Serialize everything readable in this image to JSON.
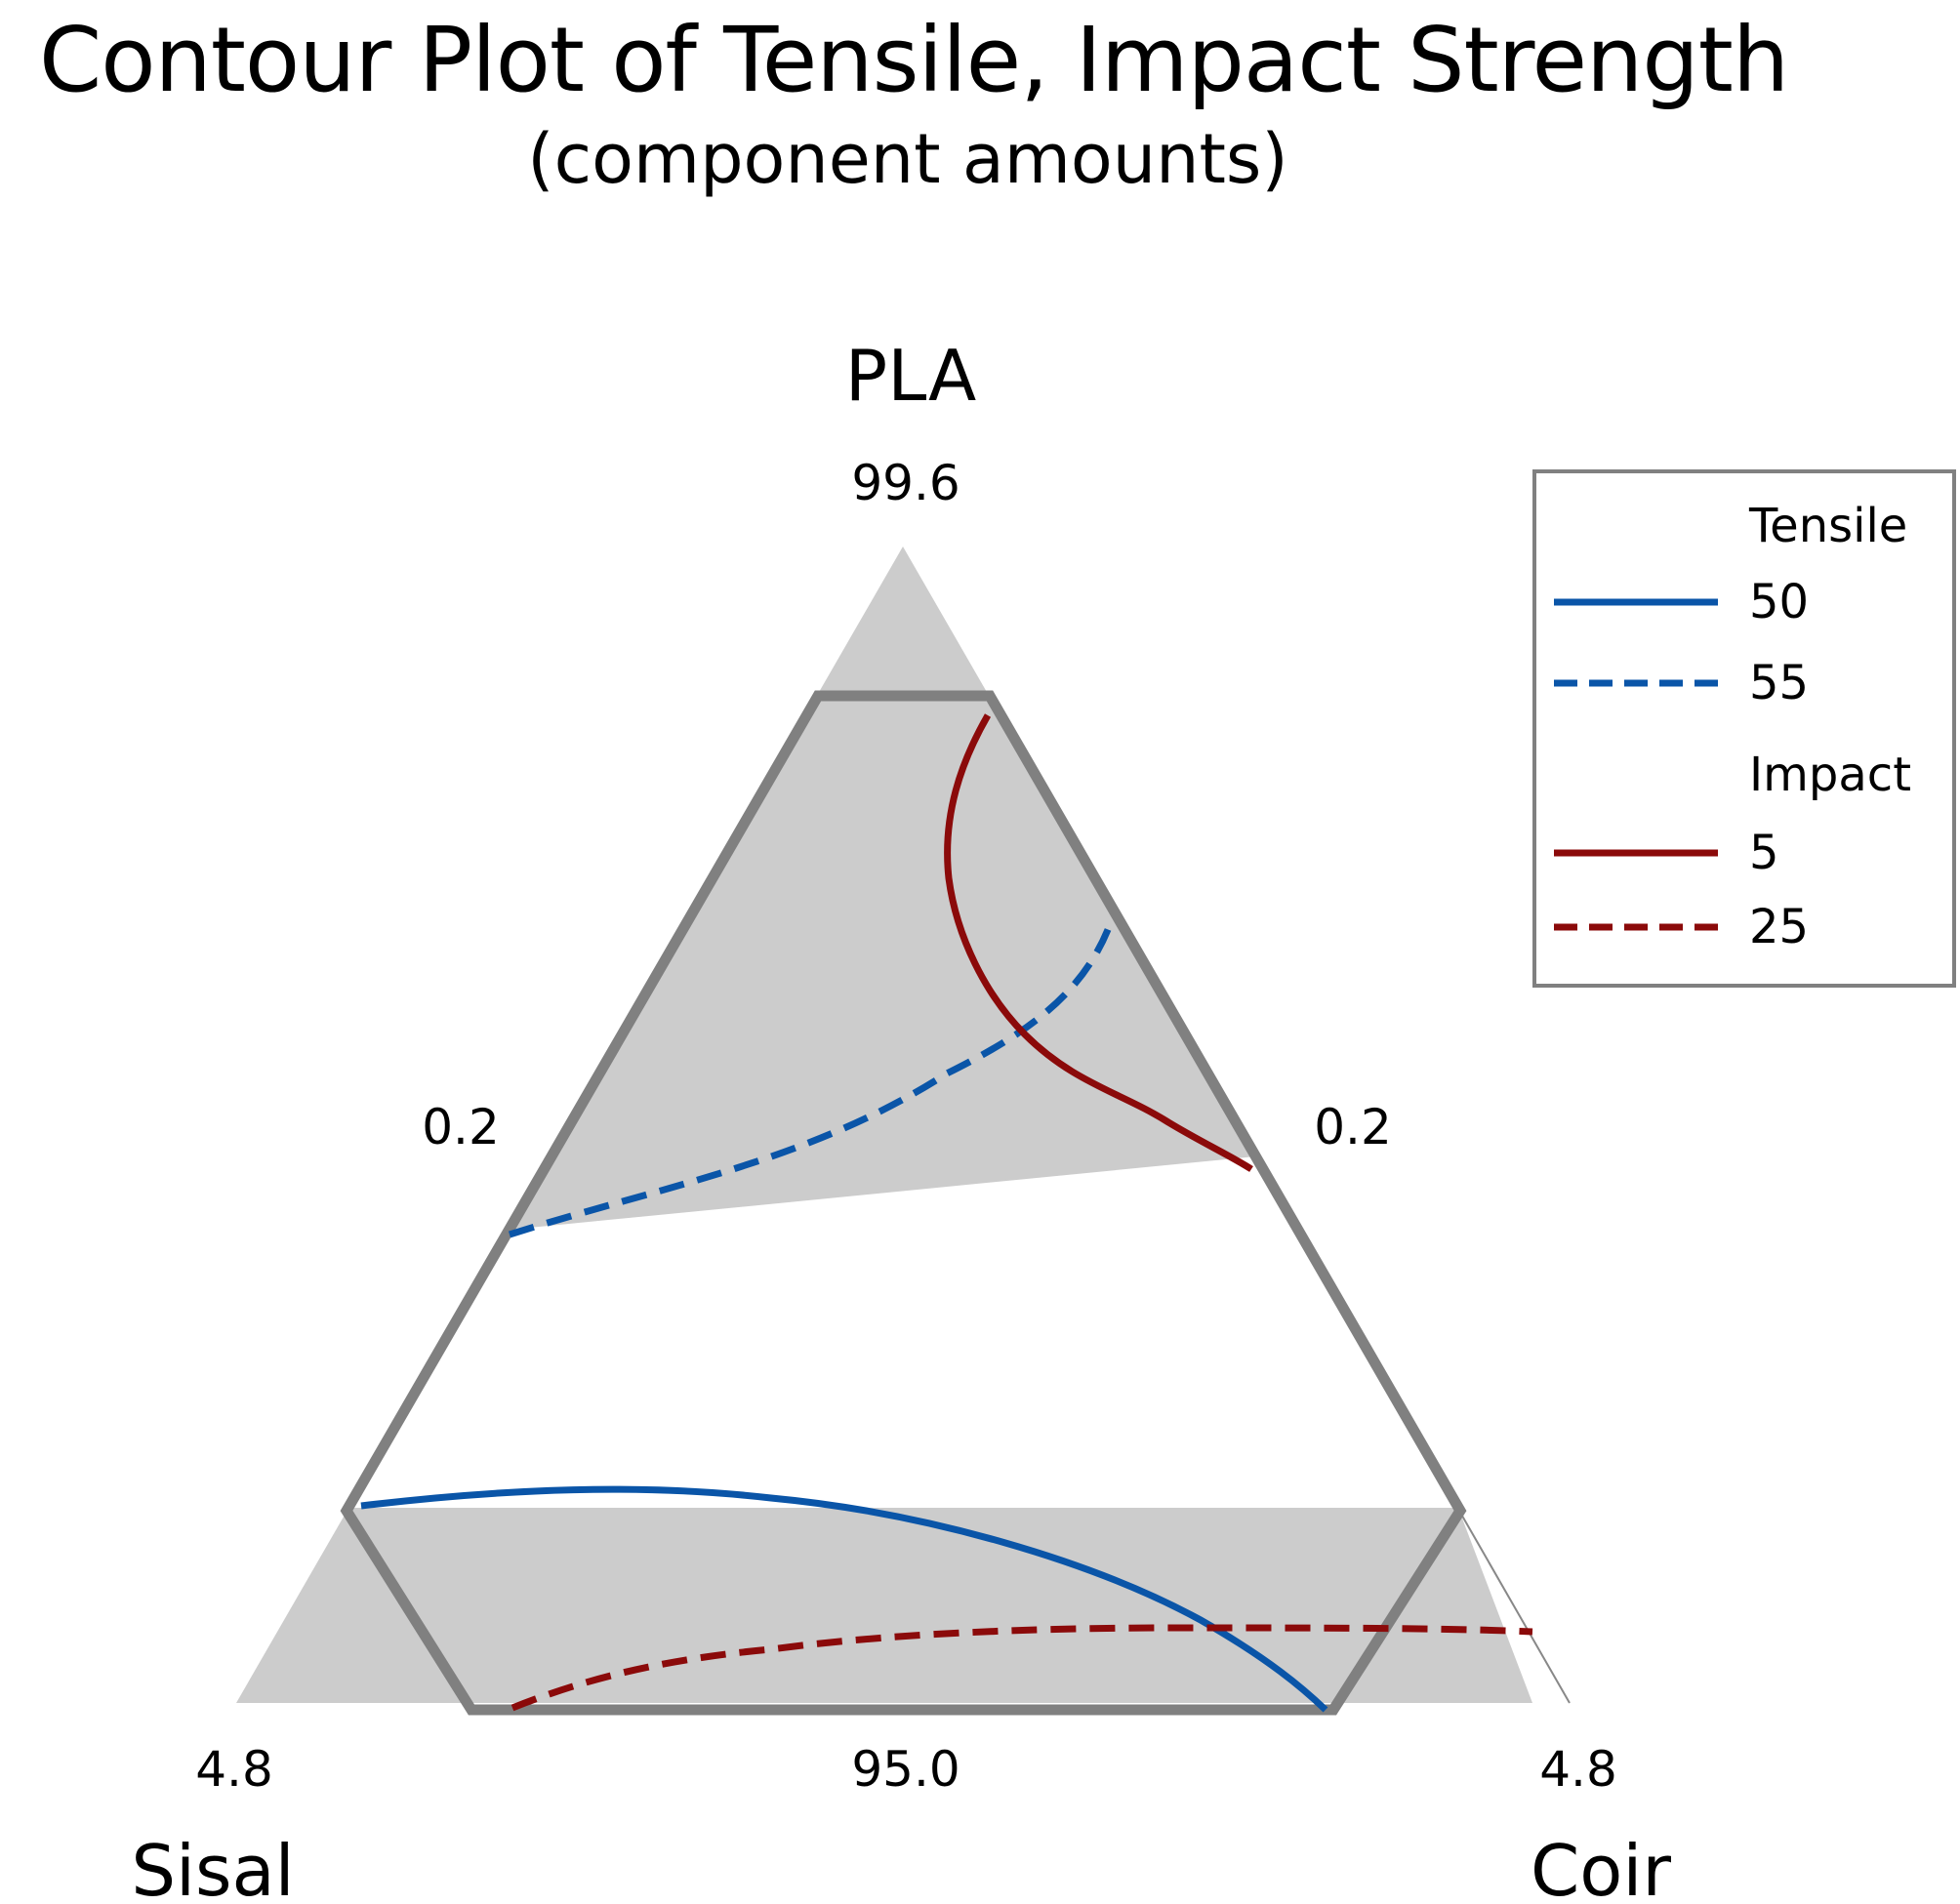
{
  "chart_data": {
    "type": "contour",
    "title": "Contour Plot of Tensile, Impact Strength",
    "subtitle": "(component amounts)",
    "vertices": {
      "top": {
        "name": "PLA",
        "value": "99.6"
      },
      "left": {
        "name": "Sisal",
        "value": "4.8"
      },
      "right": {
        "name": "Coir",
        "value": "4.8"
      }
    },
    "edge_labels": {
      "left": "0.2",
      "right": "0.2",
      "bottom": "95.0"
    },
    "legend": {
      "placement": "top-right",
      "groups": [
        {
          "title": "Tensile",
          "entries": [
            {
              "level": "50",
              "style": "solid",
              "color": "#0a55a8"
            },
            {
              "level": "55",
              "style": "dashed",
              "color": "#0a55a8"
            }
          ]
        },
        {
          "title": "Impact",
          "entries": [
            {
              "level": "5",
              "style": "solid",
              "color": "#8b0a0a"
            },
            {
              "level": "25",
              "style": "dashed",
              "color": "#8b0a0a"
            }
          ]
        }
      ]
    },
    "shading": {
      "fill": "#cccccc",
      "region_border": "#808080"
    }
  }
}
